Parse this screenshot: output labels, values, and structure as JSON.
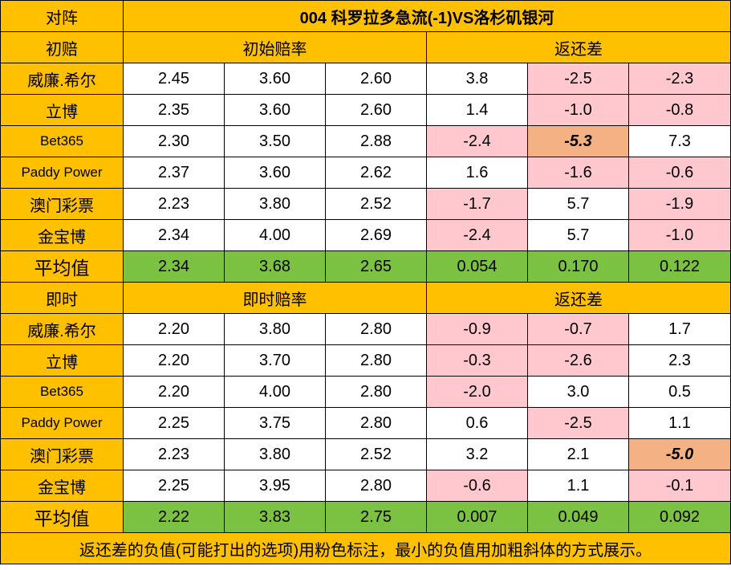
{
  "header": {
    "corner_label": "对阵",
    "match_title": "004 科罗拉多急流(-1)VS洛杉矶银河"
  },
  "initial": {
    "label": "初赔",
    "odds_header": "初始赔率",
    "return_header": "返还差",
    "rows": [
      {
        "book": "威廉.希尔",
        "odds": [
          "2.45",
          "3.60",
          "2.60"
        ],
        "diff": [
          "3.8",
          "-2.5",
          "-2.3"
        ]
      },
      {
        "book": "立博",
        "odds": [
          "2.35",
          "3.60",
          "2.60"
        ],
        "diff": [
          "1.4",
          "-1.0",
          "-0.8"
        ]
      },
      {
        "book": "Bet365",
        "odds": [
          "2.30",
          "3.50",
          "2.88"
        ],
        "diff": [
          "-2.4",
          "-5.3",
          "7.3"
        ]
      },
      {
        "book": "Paddy Power",
        "odds": [
          "2.37",
          "3.60",
          "2.62"
        ],
        "diff": [
          "1.6",
          "-1.6",
          "-0.6"
        ]
      },
      {
        "book": "澳门彩票",
        "odds": [
          "2.23",
          "3.80",
          "2.52"
        ],
        "diff": [
          "-1.7",
          "5.7",
          "-1.9"
        ]
      },
      {
        "book": "金宝博",
        "odds": [
          "2.34",
          "4.00",
          "2.69"
        ],
        "diff": [
          "-2.4",
          "5.7",
          "-1.0"
        ]
      }
    ],
    "avg": {
      "label": "平均值",
      "odds": [
        "2.34",
        "3.68",
        "2.65"
      ],
      "diff": [
        "0.054",
        "0.170",
        "0.122"
      ]
    }
  },
  "live": {
    "label": "即时",
    "odds_header": "即时赔率",
    "return_header": "返还差",
    "rows": [
      {
        "book": "威廉.希尔",
        "odds": [
          "2.20",
          "3.80",
          "2.80"
        ],
        "diff": [
          "-0.9",
          "-0.7",
          "1.7"
        ]
      },
      {
        "book": "立博",
        "odds": [
          "2.20",
          "3.70",
          "2.80"
        ],
        "diff": [
          "-0.3",
          "-2.6",
          "2.3"
        ]
      },
      {
        "book": "Bet365",
        "odds": [
          "2.20",
          "4.00",
          "2.80"
        ],
        "diff": [
          "-2.0",
          "3.0",
          "0.5"
        ]
      },
      {
        "book": "Paddy Power",
        "odds": [
          "2.25",
          "3.75",
          "2.80"
        ],
        "diff": [
          "0.6",
          "-2.5",
          "1.1"
        ]
      },
      {
        "book": "澳门彩票",
        "odds": [
          "2.23",
          "3.80",
          "2.52"
        ],
        "diff": [
          "3.2",
          "2.1",
          "-5.0"
        ]
      },
      {
        "book": "金宝博",
        "odds": [
          "2.25",
          "3.95",
          "2.80"
        ],
        "diff": [
          "-0.6",
          "1.1",
          "-0.1"
        ]
      }
    ],
    "avg": {
      "label": "平均值",
      "odds": [
        "2.22",
        "3.83",
        "2.75"
      ],
      "diff": [
        "0.007",
        "0.049",
        "0.092"
      ]
    }
  },
  "footer_note": "返还差的负值(可能打出的选项)用粉色标注，最小的负值用加粗斜体的方式展示。",
  "colors": {
    "header_bg": "#FFC000",
    "negative_bg": "#FFC7CE",
    "negative_text": "#C00000",
    "min_negative_bg": "#F4B183",
    "average_bg": "#7CC242"
  }
}
